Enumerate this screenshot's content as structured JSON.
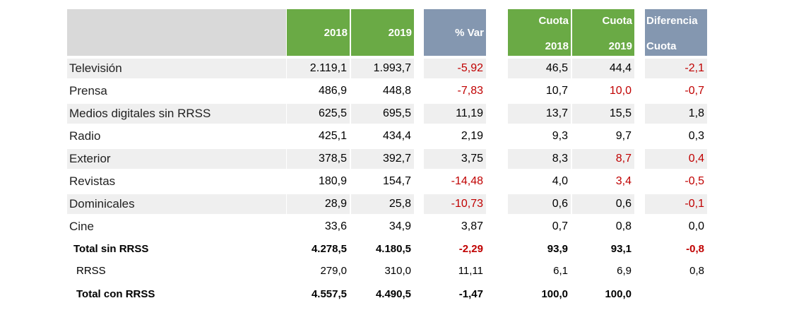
{
  "header": {
    "y2018": "2018",
    "y2019": "2019",
    "var": "% Var",
    "cuota": "Cuota",
    "cuota2018": "2018",
    "cuota2019": "2019",
    "diferencia": "Diferencia",
    "diferencia_sub": "Cuota"
  },
  "rows": [
    {
      "label": "Televisión",
      "v2018": "2.119,1",
      "v2019": "1.993,7",
      "var": "-5,92",
      "c2018": "46,5",
      "c2019": "44,4",
      "diff": "-2,1"
    },
    {
      "label": "Prensa",
      "v2018": "486,9",
      "v2019": "448,8",
      "var": "-7,83",
      "c2018": "10,7",
      "c2019": "10,0",
      "diff": "-0,7"
    },
    {
      "label": "Medios digitales sin RRSS",
      "v2018": "625,5",
      "v2019": "695,5",
      "var": "11,19",
      "c2018": "13,7",
      "c2019": "15,5",
      "diff": "1,8"
    },
    {
      "label": "Radio",
      "v2018": "425,1",
      "v2019": "434,4",
      "var": "2,19",
      "c2018": "9,3",
      "c2019": "9,7",
      "diff": "0,3"
    },
    {
      "label": "Exterior",
      "v2018": "378,5",
      "v2019": "392,7",
      "var": "3,75",
      "c2018": "8,3",
      "c2019": "8,7",
      "diff": "0,4"
    },
    {
      "label": "Revistas",
      "v2018": "180,9",
      "v2019": "154,7",
      "var": "-14,48",
      "c2018": "4,0",
      "c2019": "3,4",
      "diff": "-0,5"
    },
    {
      "label": "Dominicales",
      "v2018": "28,9",
      "v2019": "25,8",
      "var": "-10,73",
      "c2018": "0,6",
      "c2019": "0,6",
      "diff": "-0,1"
    },
    {
      "label": "Cine",
      "v2018": "33,6",
      "v2019": "34,9",
      "var": "3,87",
      "c2018": "0,7",
      "c2019": "0,8",
      "diff": "0,0"
    }
  ],
  "total_sin": {
    "label": "Total sin RRSS",
    "v2018": "4.278,5",
    "v2019": "4.180,5",
    "var": "-2,29",
    "c2018": "93,9",
    "c2019": "93,1",
    "diff": "-0,8"
  },
  "rrss": {
    "label": "RRSS",
    "v2018": "279,0",
    "v2019": "310,0",
    "var": "11,11",
    "c2018": "6,1",
    "c2019": "6,9",
    "diff": "0,8"
  },
  "total_con": {
    "label": "Total con RRSS",
    "v2018": "4.557,5",
    "v2019": "4.490,5",
    "var": "-1,47",
    "c2018": "100,0",
    "c2019": "100,0"
  },
  "colors": {
    "header_green": "#6aaa45",
    "header_blue": "#8497b0",
    "header_grey": "#d9d9d9",
    "negative_red": "#c00000"
  }
}
